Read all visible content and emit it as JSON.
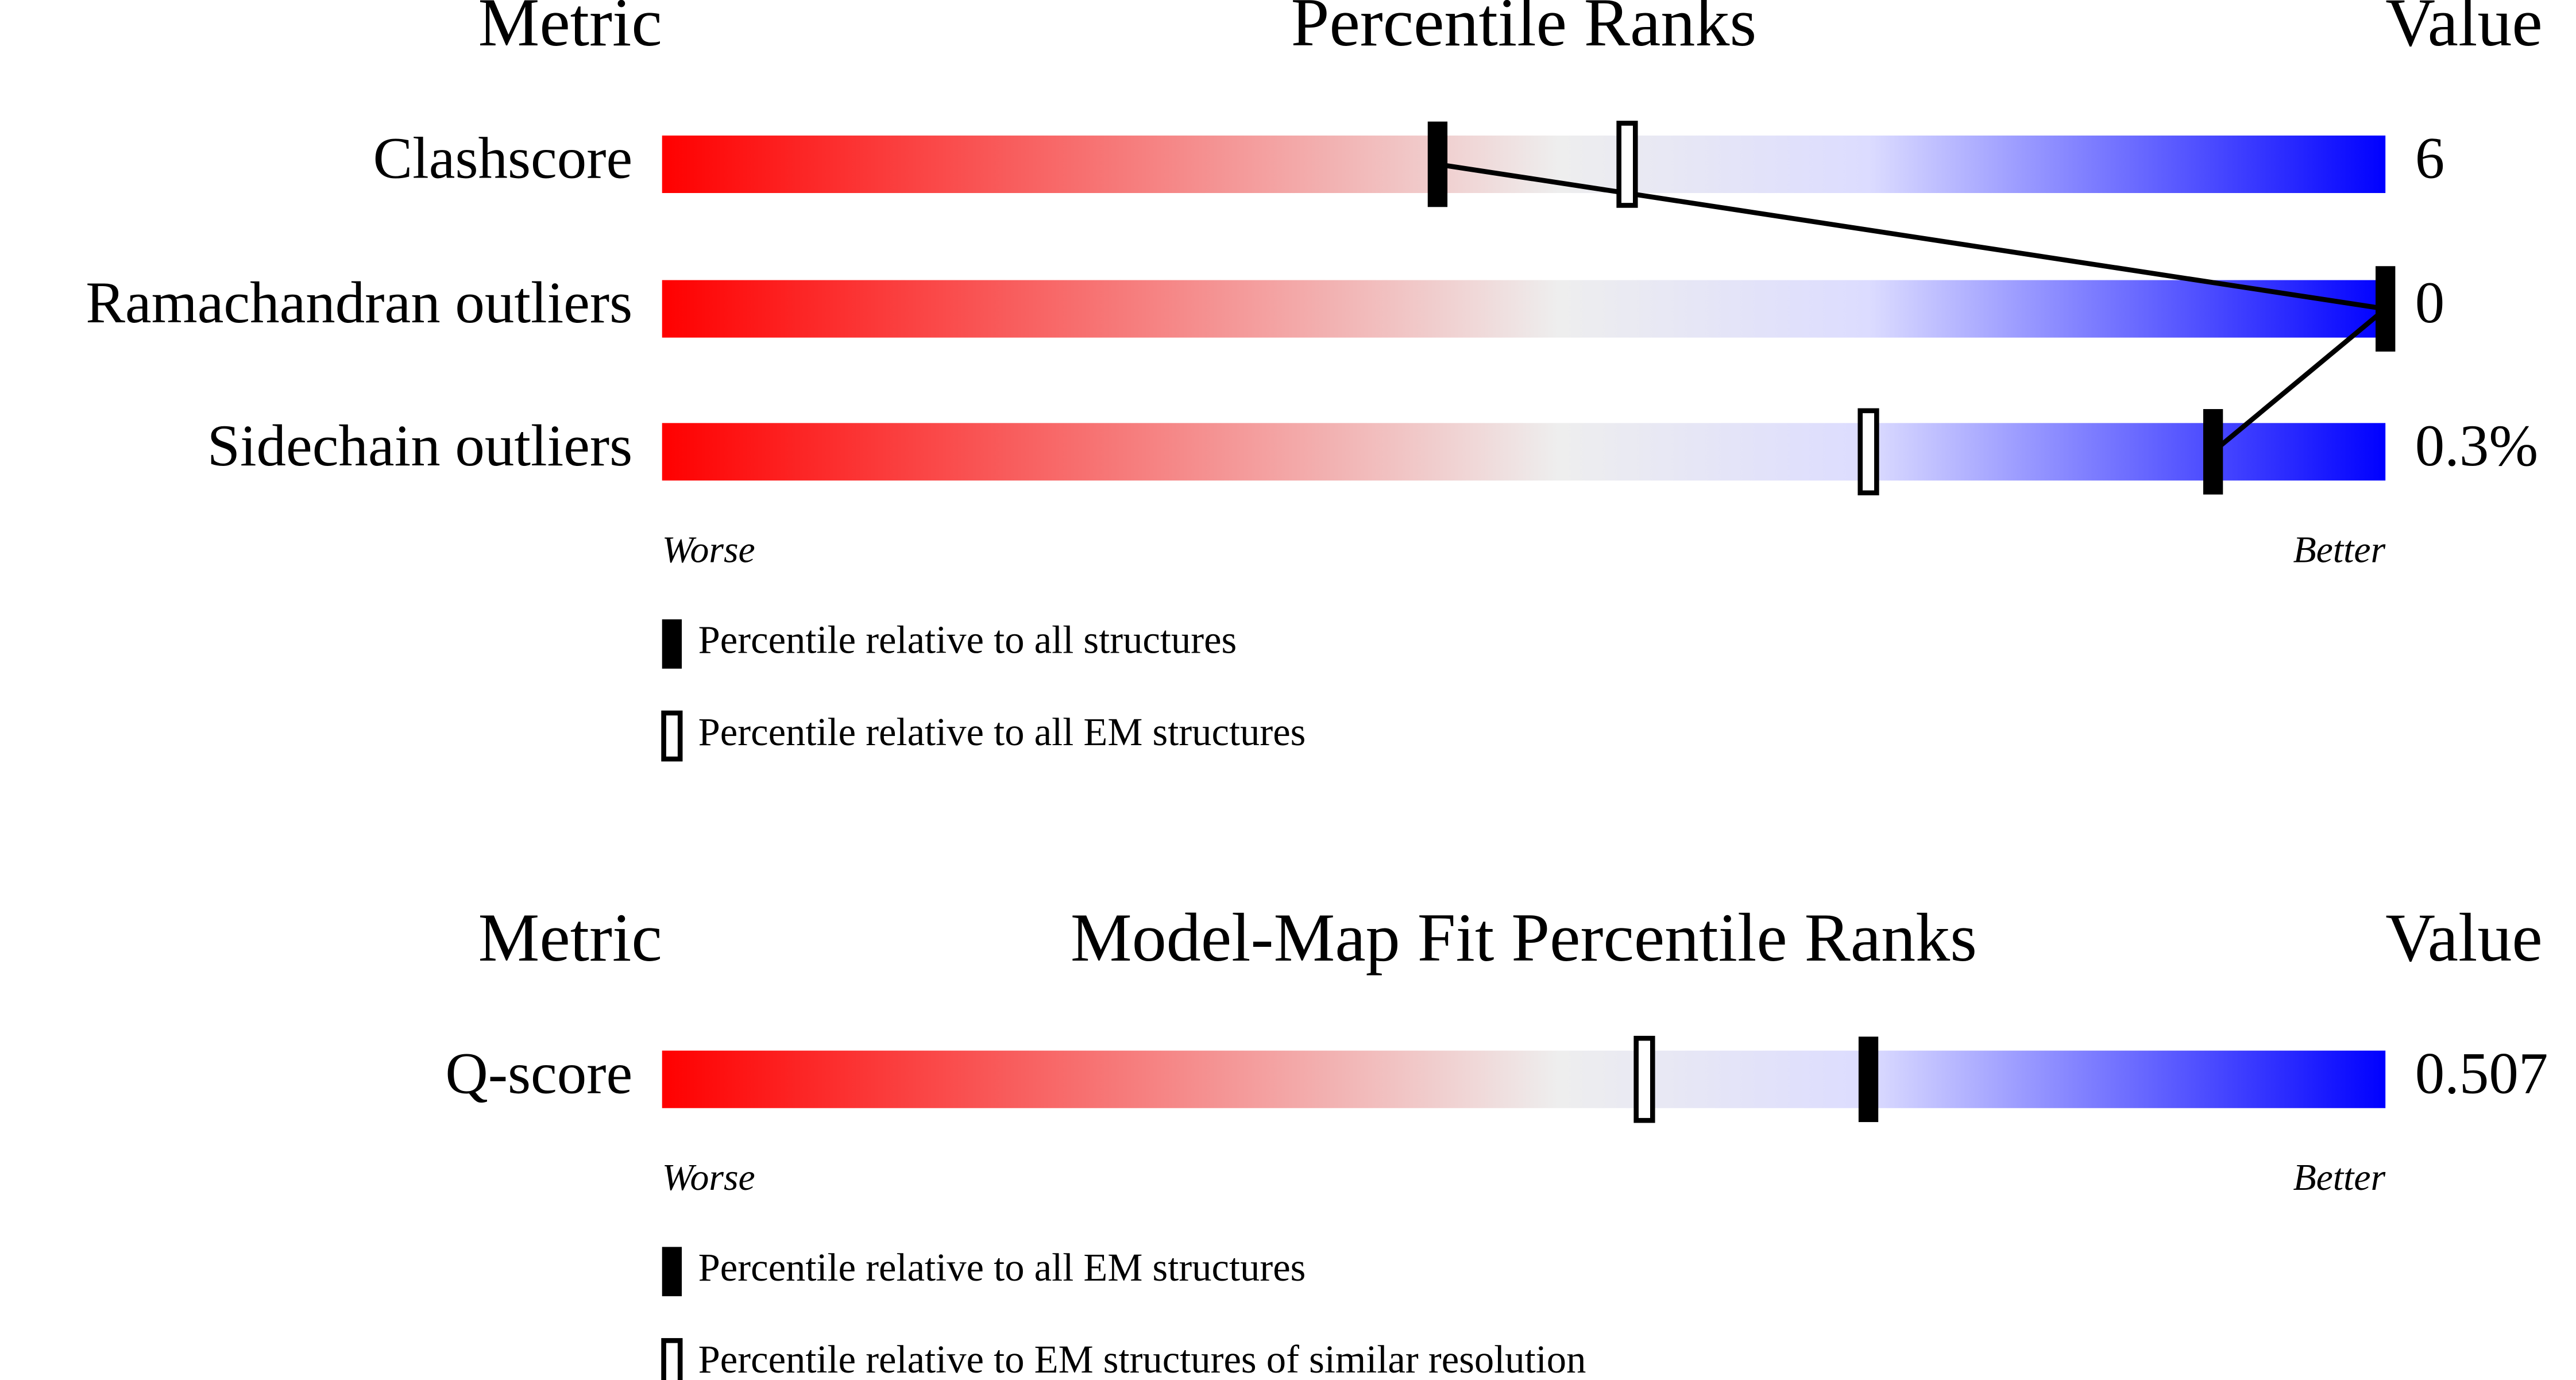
{
  "chart_data": [
    {
      "type": "percentile",
      "title": "Percentile Ranks",
      "metric_header": "Metric",
      "value_header": "Value",
      "categories": [
        "Clashscore",
        "Ramachandran outliers",
        "Sidechain outliers"
      ],
      "values": [
        6,
        0,
        0.3
      ],
      "value_labels": [
        "6",
        "0",
        "0.3%"
      ],
      "series": [
        {
          "name": "Percentile relative to all structures",
          "color": "#000000",
          "marker": "filled",
          "values": [
            45,
            100,
            90
          ]
        },
        {
          "name": "Percentile relative to all EM structures",
          "color": "#000000",
          "marker": "open",
          "values": [
            56,
            null,
            70
          ]
        }
      ],
      "xlim": [
        0,
        100
      ],
      "worse_label": "Worse",
      "better_label": "Better",
      "scale_colors": [
        "#ff0000",
        "#eeeeee",
        "#dcdcff",
        "#0000ff"
      ]
    },
    {
      "type": "percentile",
      "title": "Model-Map Fit Percentile Ranks",
      "metric_header": "Metric",
      "value_header": "Value",
      "categories": [
        "Q-score"
      ],
      "values": [
        0.507
      ],
      "value_labels": [
        "0.507"
      ],
      "series": [
        {
          "name": "Percentile relative to all EM structures",
          "color": "#000000",
          "marker": "filled",
          "values": [
            70
          ]
        },
        {
          "name": "Percentile relative to EM structures of similar resolution",
          "color": "#000000",
          "marker": "open",
          "values": [
            57
          ]
        }
      ],
      "xlim": [
        0,
        100
      ],
      "worse_label": "Worse",
      "better_label": "Better",
      "scale_colors": [
        "#ff0000",
        "#eeeeee",
        "#dcdcff",
        "#0000ff"
      ]
    }
  ]
}
